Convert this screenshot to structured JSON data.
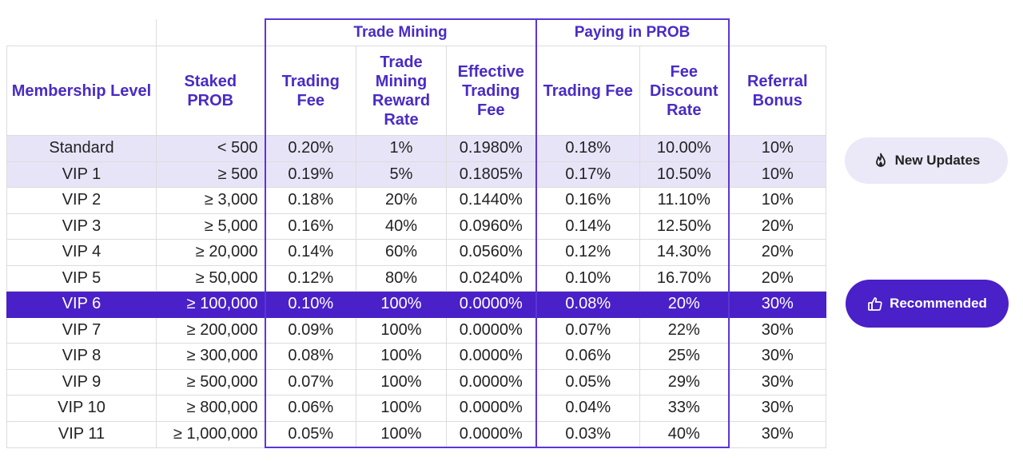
{
  "groups": {
    "trade_mining": "Trade Mining",
    "paying_in_prob": "Paying in PROB"
  },
  "headers": {
    "membership_level": "Membership Level",
    "staked_prob": "Staked PROB",
    "tm_trading_fee": "Trading Fee",
    "tm_reward_rate": "Trade Mining Reward Rate",
    "tm_effective_fee": "Effective Trading Fee",
    "pp_trading_fee": "Trading Fee",
    "pp_discount_rate": "Fee Discount Rate",
    "referral_bonus": "Referral Bonus"
  },
  "rows": [
    {
      "level": "Standard",
      "staked": "< 500",
      "tm_fee": "0.20%",
      "tm_rate": "1%",
      "tm_eff": "0.1980%",
      "pp_fee": "0.18%",
      "pp_disc": "10.00%",
      "ref": "10%"
    },
    {
      "level": "VIP 1",
      "staked": "≥ 500",
      "tm_fee": "0.19%",
      "tm_rate": "5%",
      "tm_eff": "0.1805%",
      "pp_fee": "0.17%",
      "pp_disc": "10.50%",
      "ref": "10%"
    },
    {
      "level": "VIP 2",
      "staked": "≥ 3,000",
      "tm_fee": "0.18%",
      "tm_rate": "20%",
      "tm_eff": "0.1440%",
      "pp_fee": "0.16%",
      "pp_disc": "11.10%",
      "ref": "10%"
    },
    {
      "level": "VIP 3",
      "staked": "≥ 5,000",
      "tm_fee": "0.16%",
      "tm_rate": "40%",
      "tm_eff": "0.0960%",
      "pp_fee": "0.14%",
      "pp_disc": "12.50%",
      "ref": "20%"
    },
    {
      "level": "VIP 4",
      "staked": "≥ 20,000",
      "tm_fee": "0.14%",
      "tm_rate": "60%",
      "tm_eff": "0.0560%",
      "pp_fee": "0.12%",
      "pp_disc": "14.30%",
      "ref": "20%"
    },
    {
      "level": "VIP 5",
      "staked": "≥ 50,000",
      "tm_fee": "0.12%",
      "tm_rate": "80%",
      "tm_eff": "0.0240%",
      "pp_fee": "0.10%",
      "pp_disc": "16.70%",
      "ref": "20%"
    },
    {
      "level": "VIP 6",
      "staked": "≥ 100,000",
      "tm_fee": "0.10%",
      "tm_rate": "100%",
      "tm_eff": "0.0000%",
      "pp_fee": "0.08%",
      "pp_disc": "20%",
      "ref": "30%"
    },
    {
      "level": "VIP 7",
      "staked": "≥ 200,000",
      "tm_fee": "0.09%",
      "tm_rate": "100%",
      "tm_eff": "0.0000%",
      "pp_fee": "0.07%",
      "pp_disc": "22%",
      "ref": "30%"
    },
    {
      "level": "VIP 8",
      "staked": "≥ 300,000",
      "tm_fee": "0.08%",
      "tm_rate": "100%",
      "tm_eff": "0.0000%",
      "pp_fee": "0.06%",
      "pp_disc": "25%",
      "ref": "30%"
    },
    {
      "level": "VIP 9",
      "staked": "≥ 500,000",
      "tm_fee": "0.07%",
      "tm_rate": "100%",
      "tm_eff": "0.0000%",
      "pp_fee": "0.05%",
      "pp_disc": "29%",
      "ref": "30%"
    },
    {
      "level": "VIP 10",
      "staked": "≥ 800,000",
      "tm_fee": "0.06%",
      "tm_rate": "100%",
      "tm_eff": "0.0000%",
      "pp_fee": "0.04%",
      "pp_disc": "33%",
      "ref": "30%"
    },
    {
      "level": "VIP 11",
      "staked": "≥ 1,000,000",
      "tm_fee": "0.05%",
      "tm_rate": "100%",
      "tm_eff": "0.0000%",
      "pp_fee": "0.03%",
      "pp_disc": "40%",
      "ref": "30%"
    }
  ],
  "buttons": {
    "new_updates": {
      "label": "New Updates",
      "icon": "fire-icon"
    },
    "recommended": {
      "label": "Recommended",
      "icon": "thumbs-up-icon"
    }
  },
  "colors": {
    "accent": "#4a20c8",
    "header_text": "#4a2bc4",
    "highlight_row": "#e8e4f8",
    "pill_light": "#ebe8f8"
  }
}
